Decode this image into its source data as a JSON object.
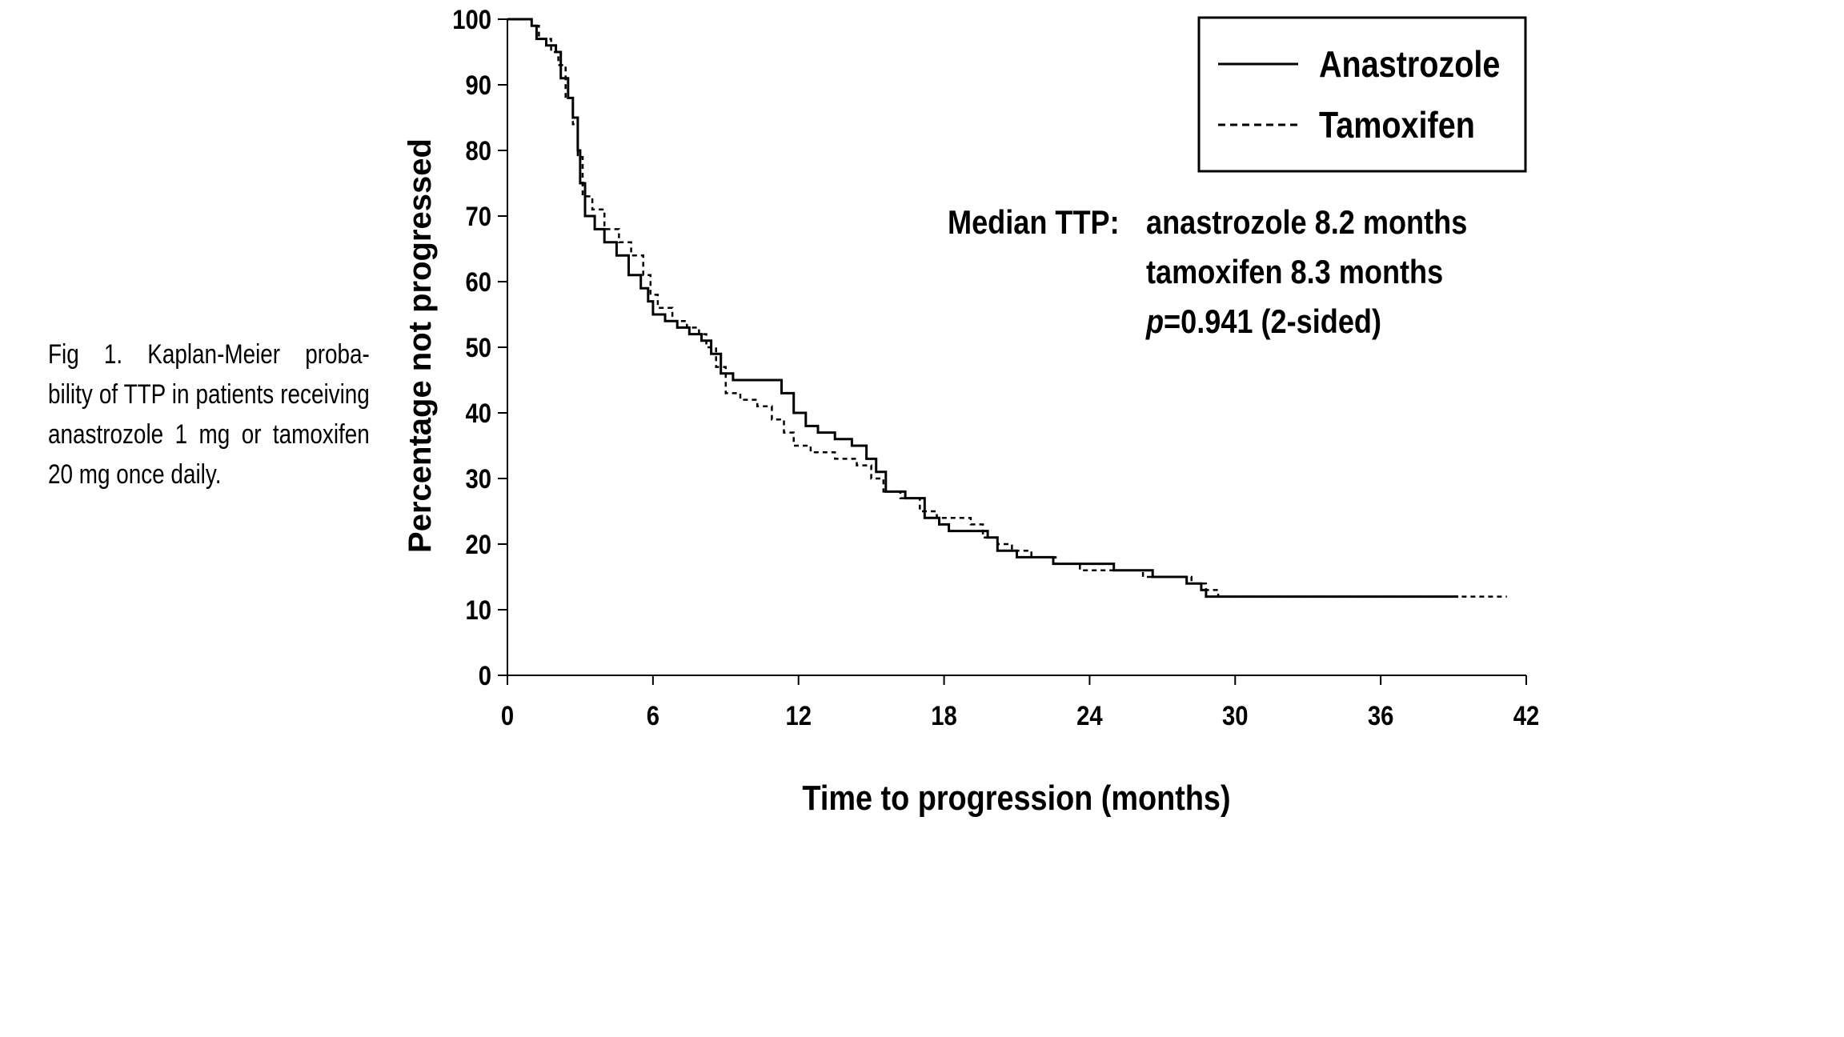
{
  "caption": {
    "lines": [
      "Fig 1.  Kaplan-Meier proba-",
      "bility of TTP in patients receiving",
      "anastrozole 1 mg or tamoxifen",
      "20 mg once daily."
    ]
  },
  "annotation": {
    "label": "Median TTP:",
    "line1": "anastrozole 8.2 months",
    "line2": "tamoxifen 8.3 months",
    "p_italic": "p",
    "p_rest": "=0.941 (2-sided)"
  },
  "chart_data": {
    "type": "line",
    "title": "",
    "xlabel": "Time to progression (months)",
    "ylabel": "Percentage not progressed",
    "xlim": [
      0,
      42
    ],
    "ylim": [
      0,
      100
    ],
    "xticks": [
      "0",
      "6",
      "12",
      "18",
      "24",
      "30",
      "36",
      "42"
    ],
    "yticks": [
      "0",
      "10",
      "20",
      "30",
      "40",
      "50",
      "60",
      "70",
      "80",
      "90",
      "100"
    ],
    "grid": false,
    "legend_position": "top-right",
    "series": [
      {
        "name": "Anastrozole",
        "style": "solid",
        "color": "#000000",
        "points": [
          [
            0,
            100
          ],
          [
            0.8,
            100
          ],
          [
            1.0,
            99
          ],
          [
            1.2,
            97
          ],
          [
            1.6,
            96
          ],
          [
            2.0,
            95
          ],
          [
            2.2,
            91
          ],
          [
            2.5,
            88
          ],
          [
            2.7,
            85
          ],
          [
            2.9,
            80
          ],
          [
            3.0,
            75
          ],
          [
            3.2,
            70
          ],
          [
            3.6,
            68
          ],
          [
            4.0,
            66
          ],
          [
            4.5,
            64
          ],
          [
            5.0,
            61
          ],
          [
            5.5,
            59
          ],
          [
            5.8,
            57
          ],
          [
            6.0,
            55
          ],
          [
            6.5,
            54
          ],
          [
            7.0,
            53
          ],
          [
            7.5,
            52
          ],
          [
            8.0,
            51
          ],
          [
            8.4,
            49
          ],
          [
            8.8,
            46
          ],
          [
            9.3,
            45
          ],
          [
            10.0,
            45
          ],
          [
            10.8,
            45
          ],
          [
            11.3,
            43
          ],
          [
            11.8,
            40
          ],
          [
            12.3,
            38
          ],
          [
            12.8,
            37
          ],
          [
            13.5,
            36
          ],
          [
            14.2,
            35
          ],
          [
            14.8,
            33
          ],
          [
            15.2,
            31
          ],
          [
            15.6,
            28
          ],
          [
            16.4,
            27
          ],
          [
            17.2,
            24
          ],
          [
            17.8,
            23
          ],
          [
            18.2,
            22
          ],
          [
            19.2,
            22
          ],
          [
            19.8,
            21
          ],
          [
            20.2,
            19
          ],
          [
            21.0,
            18
          ],
          [
            21.8,
            18
          ],
          [
            22.5,
            17
          ],
          [
            23.4,
            17
          ],
          [
            24.5,
            17
          ],
          [
            25.0,
            16
          ],
          [
            26.0,
            16
          ],
          [
            26.6,
            15
          ],
          [
            27.4,
            15
          ],
          [
            28.0,
            14
          ],
          [
            28.6,
            13
          ],
          [
            28.8,
            12
          ],
          [
            30.0,
            12
          ],
          [
            33.0,
            12
          ],
          [
            36.0,
            12
          ],
          [
            39.2,
            12
          ]
        ]
      },
      {
        "name": "Tamoxifen",
        "style": "dashed",
        "color": "#000000",
        "points": [
          [
            0,
            100
          ],
          [
            0.7,
            100
          ],
          [
            1.0,
            99
          ],
          [
            1.3,
            97
          ],
          [
            1.8,
            95
          ],
          [
            2.1,
            93
          ],
          [
            2.4,
            88
          ],
          [
            2.7,
            84
          ],
          [
            2.9,
            79
          ],
          [
            3.1,
            73
          ],
          [
            3.5,
            71
          ],
          [
            4.0,
            68
          ],
          [
            4.6,
            66
          ],
          [
            5.1,
            64
          ],
          [
            5.6,
            61
          ],
          [
            5.9,
            58
          ],
          [
            6.2,
            56
          ],
          [
            6.8,
            54
          ],
          [
            7.4,
            53
          ],
          [
            7.9,
            52
          ],
          [
            8.2,
            50
          ],
          [
            8.6,
            47
          ],
          [
            9.0,
            43
          ],
          [
            9.6,
            42
          ],
          [
            10.3,
            41
          ],
          [
            10.9,
            39
          ],
          [
            11.4,
            37
          ],
          [
            11.8,
            35
          ],
          [
            12.5,
            34
          ],
          [
            13.5,
            33
          ],
          [
            14.4,
            32
          ],
          [
            15.0,
            30
          ],
          [
            15.5,
            28
          ],
          [
            16.2,
            27
          ],
          [
            17.0,
            25
          ],
          [
            17.7,
            24
          ],
          [
            18.4,
            24
          ],
          [
            19.1,
            23
          ],
          [
            19.6,
            21
          ],
          [
            20.2,
            20
          ],
          [
            20.8,
            19
          ],
          [
            21.6,
            18
          ],
          [
            22.6,
            17
          ],
          [
            23.6,
            16
          ],
          [
            24.6,
            16
          ],
          [
            25.4,
            16
          ],
          [
            26.2,
            15
          ],
          [
            27.4,
            15
          ],
          [
            28.2,
            14
          ],
          [
            28.8,
            13
          ],
          [
            29.3,
            12
          ],
          [
            31.0,
            12
          ],
          [
            35.0,
            12
          ],
          [
            39.0,
            12
          ],
          [
            41.2,
            12
          ]
        ]
      }
    ]
  }
}
